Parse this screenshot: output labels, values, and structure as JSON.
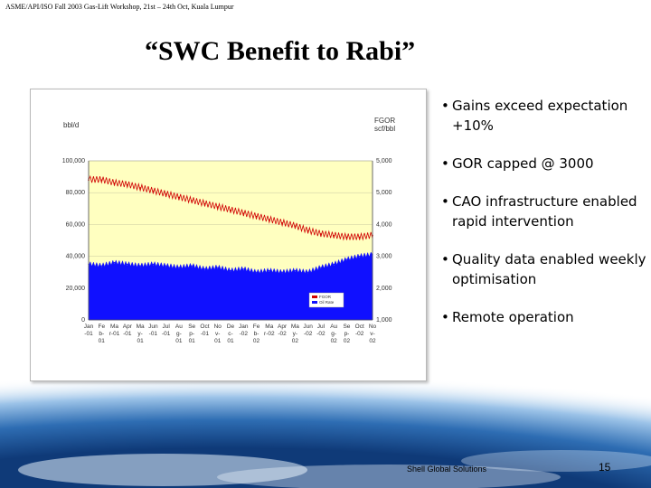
{
  "header": {
    "text": "ASME/API/ISO Fall 2003 Gas-Lift Workshop, 21st – 24th Oct, Kuala Lumpur"
  },
  "title": "“SWC Benefit to Rabi”",
  "bullets": [
    {
      "text": "Gains exceed expectation +10%"
    },
    {
      "text": "GOR capped @ 3000"
    },
    {
      "text": "CAO infrastructure enabled rapid intervention"
    },
    {
      "text": "Quality data enabled weekly optimisation"
    },
    {
      "text": "Remote operation"
    }
  ],
  "footer": {
    "company": "Shell Global Solutions",
    "page_number": "15"
  },
  "chart_data": {
    "type": "area",
    "ylabel_left": "bbl/d",
    "ylabel_right_line1": "FGOR",
    "ylabel_right_line2": "scf/bbl",
    "y_left_ticks": [
      "100,000",
      "80,000",
      "60,000",
      "40,000",
      "20,000",
      "0"
    ],
    "y_right_ticks": [
      "5,000",
      "5,000",
      "4,000",
      "3,000",
      "2,000",
      "1,000"
    ],
    "y_left_range": [
      0,
      100000
    ],
    "y_right_range": [
      1000,
      6000
    ],
    "x_ticks": [
      [
        "Jan",
        "-01"
      ],
      [
        "Fe",
        "b-",
        "01"
      ],
      [
        "Ma",
        "r-01"
      ],
      [
        "Apr",
        "-01"
      ],
      [
        "Ma",
        "y-",
        "01"
      ],
      [
        "Jun",
        "-01"
      ],
      [
        "Jul",
        "-01"
      ],
      [
        "Au",
        "g-",
        "01"
      ],
      [
        "Se",
        "p-",
        "01"
      ],
      [
        "Oct",
        "-01"
      ],
      [
        "No",
        "v-",
        "01"
      ],
      [
        "De",
        "c-",
        "01"
      ],
      [
        "Jan",
        "-02"
      ],
      [
        "Fe",
        "b-",
        "02"
      ],
      [
        "Ma",
        "r-02"
      ],
      [
        "Apr",
        "-02"
      ],
      [
        "Ma",
        "y-",
        "02"
      ],
      [
        "Jun",
        "-02"
      ],
      [
        "Jul",
        "-02"
      ],
      [
        "Au",
        "g-",
        "02"
      ],
      [
        "Se",
        "p-",
        "02"
      ],
      [
        "Oct",
        "-02"
      ],
      [
        "No",
        "v-",
        "02"
      ]
    ],
    "legend": [
      {
        "name": "FGOR",
        "color": "#d00000"
      },
      {
        "name": "Oil Rate",
        "color": "#1010ff"
      }
    ],
    "legend_position": "bottom-right",
    "background_color": "#ffffc0",
    "series": [
      {
        "name": "Oil Rate",
        "axis": "left",
        "kind": "area",
        "color": "#1010ff",
        "values": [
          35000,
          34000,
          36000,
          35000,
          34000,
          35000,
          34000,
          33000,
          34000,
          32000,
          33000,
          31000,
          32000,
          30000,
          31000,
          30000,
          31000,
          30000,
          33000,
          35000,
          38000,
          40000,
          41000
        ]
      },
      {
        "name": "FGOR",
        "axis": "right",
        "kind": "line",
        "color": "#d00000",
        "values": [
          5400,
          5400,
          5300,
          5250,
          5150,
          5050,
          4950,
          4850,
          4750,
          4650,
          4550,
          4450,
          4350,
          4250,
          4150,
          4050,
          3950,
          3800,
          3700,
          3650,
          3600,
          3600,
          3650
        ]
      }
    ]
  }
}
